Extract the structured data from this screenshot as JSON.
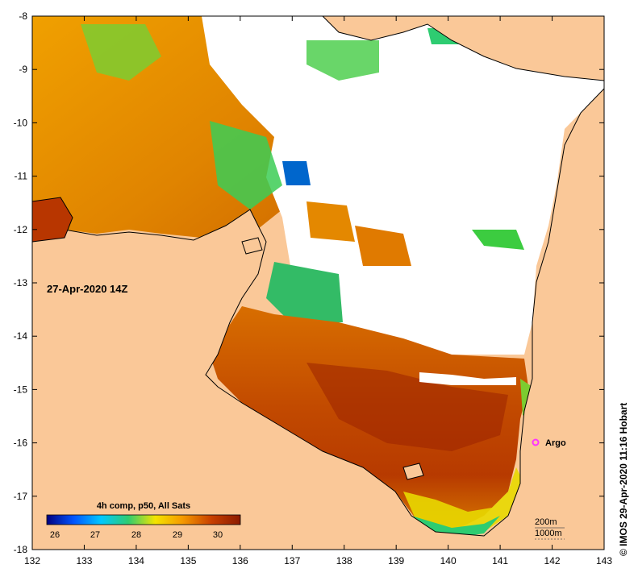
{
  "map": {
    "timestamp": "27-Apr-2020 14Z",
    "x_ticks": [
      "132",
      "133",
      "134",
      "135",
      "136",
      "137",
      "138",
      "139",
      "140",
      "141",
      "142",
      "143"
    ],
    "y_ticks": [
      "-8",
      "-9",
      "-10",
      "-11",
      "-12",
      "-13",
      "-14",
      "-15",
      "-16",
      "-17",
      "-18"
    ],
    "marker": {
      "label": "Argo",
      "lon": 141.7,
      "lat": -16.0,
      "color": "#ff33ff"
    },
    "colorbar": {
      "title": "4h comp, p50, All Sats",
      "tick_labels": [
        "26",
        "27",
        "28",
        "29",
        "30"
      ],
      "colors": [
        "#000080",
        "#0055ff",
        "#00c8ff",
        "#2ecc71",
        "#f4e400",
        "#f59a00",
        "#c84000",
        "#8b1a00"
      ]
    },
    "depth_legend": {
      "line1": "200m",
      "line2": "1000m"
    },
    "credit": "© IMOS 29-Apr-2020 11:16 Hobart",
    "colors": {
      "land": "#fac898",
      "cloud": "#ffffff",
      "warm": "#c24a00",
      "hot": "#9a2200",
      "cool": "#2ecc40"
    }
  }
}
